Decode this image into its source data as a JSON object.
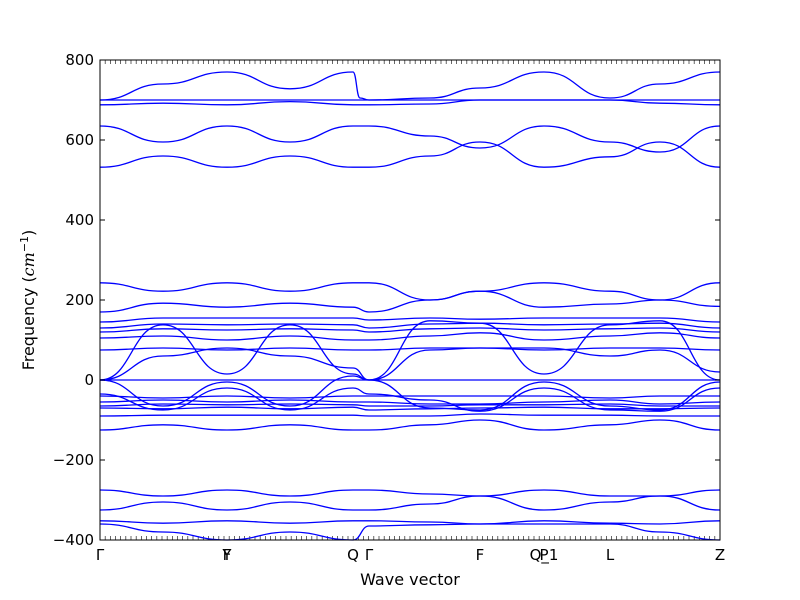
{
  "chart_data": {
    "type": "line",
    "xlabel": "Wave vector",
    "ylabel_text": "Frequency (",
    "ylabel_unit_main": "cm",
    "ylabel_unit_exp": "−1",
    "ylabel_close": ")",
    "ylim": [
      -400,
      800
    ],
    "yticks": [
      -400,
      -200,
      0,
      200,
      400,
      600,
      800
    ],
    "ytick_labels": [
      "−400",
      "−200",
      "0",
      "200",
      "400",
      "600",
      "800"
    ],
    "xlim": [
      0,
      6.2
    ],
    "high_symmetry_points": [
      {
        "label": "Γ",
        "x": 0.0
      },
      {
        "label": "Y",
        "x": 1.27
      },
      {
        "label": "F",
        "x": 1.27
      },
      {
        "label": "Q",
        "x": 2.53
      },
      {
        "label": "Γ",
        "x": 2.69
      },
      {
        "label": "F",
        "x": 3.8
      },
      {
        "label": "P",
        "x": 4.44
      },
      {
        "label": "Q_1",
        "x": 4.44
      },
      {
        "label": "L",
        "x": 5.1
      },
      {
        "label": "Z",
        "x": 6.2
      }
    ],
    "bands": [
      {
        "x": [
          0,
          0.63,
          1.27,
          1.9,
          2.53,
          2.69,
          3.3,
          3.8,
          4.44,
          5.1,
          5.6,
          6.2
        ],
        "y": [
          700,
          700,
          700,
          700,
          700,
          700,
          700,
          700,
          700,
          700,
          700,
          700
        ]
      },
      {
        "x": [
          0,
          0.63,
          1.27,
          1.9,
          2.53,
          2.6,
          2.69,
          3.3,
          3.8,
          4.44,
          5.1,
          5.6,
          6.2
        ],
        "y": [
          700,
          740,
          770,
          728,
          770,
          705,
          700,
          705,
          730,
          770,
          705,
          740,
          770
        ]
      },
      {
        "x": [
          0,
          0.63,
          1.27,
          1.9,
          2.53,
          2.69,
          3.3,
          3.8,
          4.44,
          5.1,
          5.6,
          6.2
        ],
        "y": [
          688,
          692,
          688,
          696,
          688,
          688,
          690,
          700,
          700,
          700,
          692,
          688
        ]
      },
      {
        "x": [
          0,
          0.63,
          1.27,
          1.9,
          2.53,
          2.69,
          3.3,
          3.8,
          4.44,
          5.1,
          5.6,
          6.2
        ],
        "y": [
          635,
          595,
          635,
          595,
          635,
          635,
          610,
          580,
          635,
          595,
          570,
          635
        ]
      },
      {
        "x": [
          0,
          0.63,
          1.27,
          1.9,
          2.53,
          2.69,
          3.3,
          3.8,
          4.44,
          5.1,
          5.6,
          6.2
        ],
        "y": [
          532,
          560,
          532,
          560,
          532,
          532,
          560,
          595,
          532,
          558,
          595,
          532
        ]
      },
      {
        "x": [
          0,
          0.63,
          1.27,
          1.9,
          2.53,
          2.69,
          3.3,
          3.8,
          4.44,
          5.1,
          5.6,
          6.2
        ],
        "y": [
          243,
          222,
          243,
          222,
          243,
          243,
          200,
          222,
          243,
          222,
          200,
          243
        ]
      },
      {
        "x": [
          0,
          0.63,
          1.27,
          1.9,
          2.53,
          2.69,
          3.3,
          3.8,
          4.44,
          5.1,
          5.6,
          6.2
        ],
        "y": [
          170,
          192,
          182,
          192,
          182,
          170,
          200,
          222,
          182,
          190,
          200,
          184
        ]
      },
      {
        "x": [
          0,
          0.63,
          1.27,
          1.9,
          2.53,
          2.69,
          3.3,
          3.8,
          4.44,
          5.1,
          5.6,
          6.2
        ],
        "y": [
          145,
          155,
          155,
          155,
          155,
          150,
          155,
          152,
          155,
          155,
          155,
          145
        ]
      },
      {
        "x": [
          0,
          0.63,
          1.27,
          1.9,
          2.53,
          2.69,
          3.3,
          3.8,
          4.44,
          5.1,
          5.6,
          6.2
        ],
        "y": [
          130,
          140,
          138,
          140,
          138,
          130,
          140,
          142,
          138,
          140,
          142,
          130
        ]
      },
      {
        "x": [
          0,
          0.63,
          1.27,
          1.9,
          2.53,
          2.69,
          3.3,
          3.8,
          4.44,
          5.1,
          5.6,
          6.2
        ],
        "y": [
          120,
          128,
          125,
          128,
          125,
          120,
          128,
          130,
          125,
          128,
          130,
          120
        ]
      },
      {
        "x": [
          0,
          0.63,
          1.27,
          1.9,
          2.53,
          2.69,
          3.3,
          3.8,
          4.44,
          5.1,
          5.6,
          6.2
        ],
        "y": [
          105,
          110,
          100,
          110,
          100,
          100,
          110,
          118,
          100,
          110,
          118,
          105
        ]
      },
      {
        "x": [
          0,
          0.63,
          1.27,
          1.9,
          2.53,
          2.69,
          3.3,
          3.8,
          4.44,
          5.1,
          5.6,
          6.2
        ],
        "y": [
          75,
          80,
          75,
          80,
          75,
          75,
          80,
          80,
          75,
          80,
          80,
          75
        ]
      },
      {
        "x": [
          0,
          0.63,
          1.27,
          1.9,
          2.53,
          2.69,
          3.3,
          3.8,
          4.44,
          5.1,
          5.6,
          6.2
        ],
        "y": [
          0,
          138,
          15,
          138,
          15,
          0,
          148,
          142,
          15,
          138,
          148,
          0
        ]
      },
      {
        "x": [
          0,
          0.63,
          1.27,
          1.9,
          2.53,
          2.69,
          3.3,
          3.8,
          4.44,
          5.1,
          5.6,
          6.2
        ],
        "y": [
          0,
          60,
          80,
          60,
          30,
          0,
          75,
          80,
          80,
          60,
          75,
          20
        ]
      },
      {
        "x": [
          0,
          6.2
        ],
        "y": [
          0,
          0
        ]
      },
      {
        "x": [
          0,
          0.63,
          1.27,
          1.9,
          2.53,
          2.69,
          3.3,
          3.8,
          4.44,
          5.1,
          5.6,
          6.2
        ],
        "y": [
          0,
          -65,
          -5,
          -65,
          10,
          0,
          -70,
          -75,
          -5,
          -65,
          -75,
          -5
        ]
      },
      {
        "x": [
          0,
          0.63,
          1.27,
          1.9,
          2.53,
          2.69,
          3.3,
          3.8,
          4.44,
          5.1,
          5.6,
          6.2
        ],
        "y": [
          -35,
          -75,
          -20,
          -75,
          -20,
          -35,
          -50,
          -78,
          -20,
          -75,
          -78,
          -20
        ]
      },
      {
        "x": [
          0,
          0.63,
          1.27,
          1.9,
          2.53,
          2.69,
          3.3,
          3.8,
          4.44,
          5.1,
          5.6,
          6.2
        ],
        "y": [
          -40,
          -45,
          -40,
          -45,
          -40,
          -40,
          -40,
          -40,
          -40,
          -45,
          -40,
          -40
        ]
      },
      {
        "x": [
          0,
          0.63,
          1.27,
          1.9,
          2.53,
          2.69,
          3.3,
          3.8,
          4.44,
          5.1,
          5.6,
          6.2
        ],
        "y": [
          -55,
          -50,
          -55,
          -50,
          -55,
          -55,
          -60,
          -60,
          -55,
          -50,
          -60,
          -55
        ]
      },
      {
        "x": [
          0,
          0.63,
          1.27,
          1.9,
          2.53,
          2.69,
          3.3,
          3.8,
          4.44,
          5.1,
          5.6,
          6.2
        ],
        "y": [
          -65,
          -60,
          -62,
          -60,
          -62,
          -65,
          -65,
          -62,
          -62,
          -60,
          -65,
          -65
        ]
      },
      {
        "x": [
          0,
          0.63,
          1.27,
          1.9,
          2.53,
          2.69,
          3.3,
          3.8,
          4.44,
          5.1,
          5.6,
          6.2
        ],
        "y": [
          -70,
          -72,
          -68,
          -72,
          -68,
          -75,
          -72,
          -70,
          -68,
          -72,
          -72,
          -70
        ]
      },
      {
        "x": [
          0,
          0.63,
          1.27,
          1.9,
          2.53,
          2.69,
          3.3,
          3.8,
          4.44,
          5.1,
          5.6,
          6.2
        ],
        "y": [
          -90,
          -88,
          -88,
          -88,
          -88,
          -90,
          -90,
          -85,
          -88,
          -88,
          -90,
          -90
        ]
      },
      {
        "x": [
          0,
          0.63,
          1.27,
          1.9,
          2.53,
          2.69,
          3.3,
          3.8,
          4.44,
          5.1,
          5.6,
          6.2
        ],
        "y": [
          -125,
          -112,
          -125,
          -112,
          -125,
          -125,
          -112,
          -100,
          -125,
          -112,
          -100,
          -125
        ]
      },
      {
        "x": [
          0,
          0.63,
          1.27,
          1.9,
          2.53,
          2.69,
          3.3,
          3.8,
          4.44,
          5.1,
          5.6,
          6.2
        ],
        "y": [
          -275,
          -290,
          -275,
          -290,
          -275,
          -275,
          -285,
          -290,
          -275,
          -290,
          -290,
          -275
        ]
      },
      {
        "x": [
          0,
          0.63,
          1.27,
          1.9,
          2.53,
          2.69,
          3.3,
          3.8,
          4.44,
          5.1,
          5.6,
          6.2
        ],
        "y": [
          -325,
          -305,
          -325,
          -305,
          -325,
          -325,
          -310,
          -290,
          -325,
          -305,
          -290,
          -325
        ]
      },
      {
        "x": [
          0,
          0.63,
          1.27,
          1.9,
          2.53,
          2.69,
          3.3,
          3.8,
          4.44,
          5.1,
          5.6,
          6.2
        ],
        "y": [
          -352,
          -358,
          -352,
          -358,
          -352,
          -352,
          -355,
          -360,
          -352,
          -358,
          -360,
          -352
        ]
      },
      {
        "x": [
          0,
          0.63,
          1.27,
          1.9,
          2.53,
          2.69,
          3.3,
          3.8,
          4.44,
          5.1,
          5.6,
          6.2
        ],
        "y": [
          -360,
          -380,
          -400,
          -380,
          -400,
          -365,
          -362,
          -360,
          -360,
          -360,
          -380,
          -400
        ]
      }
    ]
  }
}
